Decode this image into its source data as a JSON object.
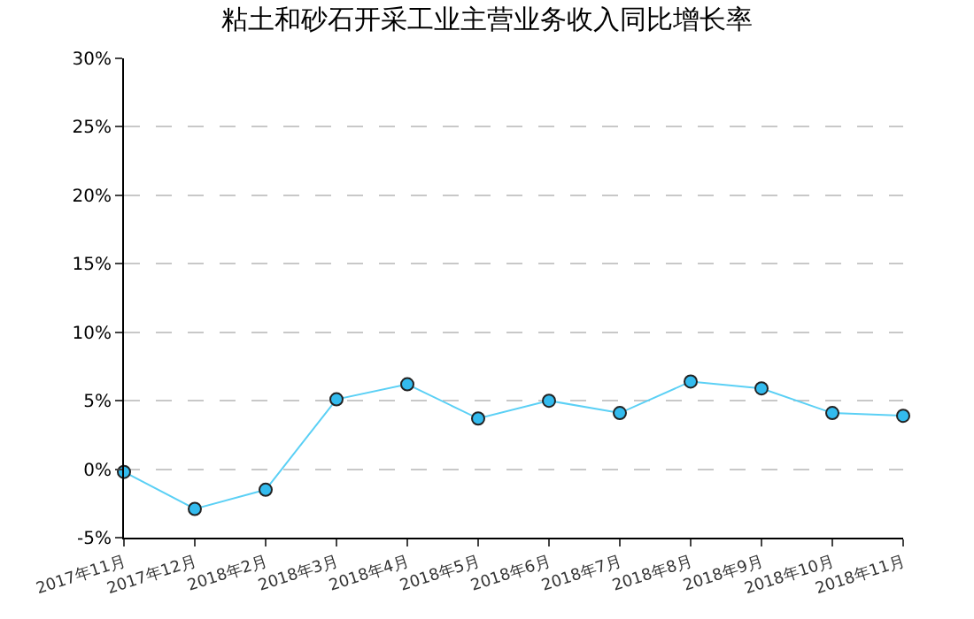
{
  "chart_data": {
    "type": "line",
    "title": "粘土和砂石开采工业主营业务收入同比增长率",
    "categories": [
      "2017年11月",
      "2017年12月",
      "2018年2月",
      "2018年3月",
      "2018年4月",
      "2018年5月",
      "2018年6月",
      "2018年7月",
      "2018年8月",
      "2018年9月",
      "2018年10月",
      "2018年11月"
    ],
    "series": [
      {
        "color": "#5bd0f5",
        "values": [
          -0.2,
          -2.9,
          -1.5,
          5.1,
          6.2,
          3.7,
          5.0,
          4.1,
          6.4,
          5.9,
          4.1,
          3.9
        ]
      }
    ],
    "ylim": [
      -5,
      30
    ],
    "yticks": [
      {
        "value": -5,
        "label": "-5%"
      },
      {
        "value": 0,
        "label": "0%"
      },
      {
        "value": 5,
        "label": "5%"
      },
      {
        "value": 10,
        "label": "10%"
      },
      {
        "value": 15,
        "label": "15%"
      },
      {
        "value": 20,
        "label": "20%"
      },
      {
        "value": 25,
        "label": "25%"
      },
      {
        "value": 30,
        "label": "30%"
      }
    ],
    "grid": "y",
    "marker": "circle",
    "line_style": "solid"
  }
}
